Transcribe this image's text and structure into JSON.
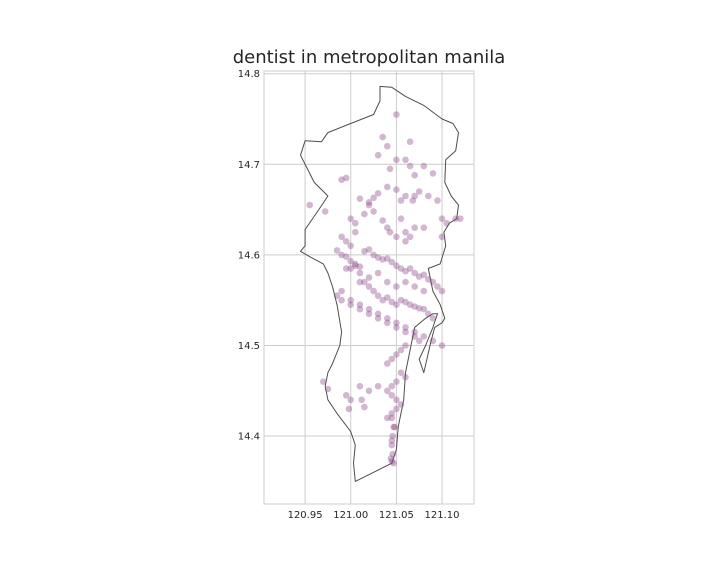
{
  "chart_data": {
    "type": "scatter",
    "title": "dentist in metropolitan manila",
    "xlabel": "",
    "ylabel": "",
    "xlim": [
      120.905,
      121.135
    ],
    "ylim": [
      14.325,
      14.803
    ],
    "xticks": [
      120.95,
      121.0,
      121.05,
      121.1
    ],
    "xtick_labels": [
      "120.95",
      "121.00",
      "121.05",
      "121.10"
    ],
    "yticks": [
      14.4,
      14.5,
      14.6,
      14.7,
      14.8
    ],
    "ytick_labels": [
      "14.4",
      "14.5",
      "14.6",
      "14.7",
      "14.8"
    ],
    "grid": true,
    "legend": "none",
    "marker_color": "#8e4a8c",
    "outline_color": "#4d4d4d",
    "outline": [
      [
        121.005,
        14.35
      ],
      [
        121.025,
        14.36
      ],
      [
        121.045,
        14.37
      ],
      [
        121.05,
        14.385
      ],
      [
        121.052,
        14.41
      ],
      [
        121.058,
        14.44
      ],
      [
        121.06,
        14.47
      ],
      [
        121.066,
        14.5
      ],
      [
        121.07,
        14.52
      ],
      [
        121.082,
        14.53
      ],
      [
        121.09,
        14.535
      ],
      [
        121.095,
        14.535
      ],
      [
        121.09,
        14.52
      ],
      [
        121.082,
        14.5
      ],
      [
        121.075,
        14.485
      ],
      [
        121.08,
        14.47
      ],
      [
        121.088,
        14.505
      ],
      [
        121.092,
        14.52
      ],
      [
        121.1,
        14.525
      ],
      [
        121.103,
        14.53
      ],
      [
        121.098,
        14.545
      ],
      [
        121.09,
        14.56
      ],
      [
        121.085,
        14.585
      ],
      [
        121.098,
        14.59
      ],
      [
        121.104,
        14.61
      ],
      [
        121.102,
        14.625
      ],
      [
        121.108,
        14.635
      ],
      [
        121.116,
        14.64
      ],
      [
        121.118,
        14.655
      ],
      [
        121.11,
        14.665
      ],
      [
        121.103,
        14.68
      ],
      [
        121.104,
        14.705
      ],
      [
        121.115,
        14.715
      ],
      [
        121.118,
        14.735
      ],
      [
        121.112,
        14.745
      ],
      [
        121.1,
        14.75
      ],
      [
        121.08,
        14.765
      ],
      [
        121.06,
        14.775
      ],
      [
        121.045,
        14.785
      ],
      [
        121.032,
        14.786
      ],
      [
        121.032,
        14.77
      ],
      [
        121.025,
        14.755
      ],
      [
        121.0,
        14.745
      ],
      [
        120.975,
        14.735
      ],
      [
        120.968,
        14.725
      ],
      [
        120.95,
        14.726
      ],
      [
        120.945,
        14.71
      ],
      [
        120.955,
        14.69
      ],
      [
        120.96,
        14.68
      ],
      [
        120.975,
        14.665
      ],
      [
        120.965,
        14.65
      ],
      [
        120.95,
        14.628
      ],
      [
        120.95,
        14.61
      ],
      [
        120.945,
        14.604
      ],
      [
        120.955,
        14.598
      ],
      [
        120.97,
        14.59
      ],
      [
        120.975,
        14.58
      ],
      [
        120.98,
        14.565
      ],
      [
        120.985,
        14.545
      ],
      [
        120.99,
        14.515
      ],
      [
        120.988,
        14.5
      ],
      [
        120.98,
        14.48
      ],
      [
        120.975,
        14.47
      ],
      [
        120.972,
        14.455
      ],
      [
        120.975,
        14.44
      ],
      [
        120.985,
        14.425
      ],
      [
        121.0,
        14.405
      ],
      [
        121.005,
        14.39
      ],
      [
        121.003,
        14.37
      ],
      [
        121.005,
        14.35
      ]
    ],
    "x": [
      121.05,
      121.035,
      121.065,
      121.04,
      121.03,
      121.06,
      121.05,
      121.065,
      121.043,
      121.07,
      121.08,
      121.09,
      121.075,
      121.06,
      121.055,
      120.995,
      120.99,
      121.04,
      121.05,
      121.03,
      121.025,
      121.02,
      121.07,
      121.068,
      121.085,
      121.095,
      121.1,
      121.105,
      121.115,
      121.12,
      121.1,
      121.08,
      121.07,
      121.06,
      121.065,
      121.06,
      121.05,
      121.04,
      121.043,
      121.055,
      120.955,
      120.972,
      121.0,
      121.005,
      121.015,
      121.025,
      121.035,
      121.02,
      121.01,
      121.005,
      120.99,
      120.995,
      121.0,
      120.985,
      120.99,
      120.995,
      121.0,
      121.005,
      121.01,
      121.015,
      121.02,
      121.025,
      121.03,
      121.035,
      121.04,
      121.045,
      121.05,
      121.055,
      121.06,
      121.065,
      121.07,
      121.075,
      121.08,
      121.085,
      121.09,
      121.095,
      121.1,
      121.02,
      121.03,
      121.04,
      121.05,
      121.06,
      121.07,
      121.08,
      121.01,
      120.995,
      121.0,
      121.005,
      121.01,
      121.015,
      121.02,
      121.025,
      121.03,
      121.035,
      121.04,
      121.045,
      121.05,
      121.055,
      121.06,
      121.065,
      121.07,
      121.075,
      121.08,
      121.085,
      121.09,
      121.0,
      121.01,
      121.02,
      121.03,
      121.04,
      121.05,
      121.06,
      121.07,
      121.08,
      121.09,
      121.1,
      120.99,
      120.985,
      120.99,
      121.0,
      121.01,
      121.02,
      121.03,
      121.04,
      121.05,
      121.06,
      121.07,
      121.075,
      121.06,
      121.055,
      121.05,
      121.045,
      121.04,
      121.055,
      121.06,
      121.05,
      121.045,
      121.04,
      121.045,
      121.05,
      121.055,
      121.05,
      121.045,
      121.04,
      120.97,
      120.975,
      120.995,
      121.0,
      120.998,
      121.01,
      121.02,
      121.015,
      121.012,
      121.03,
      121.045,
      121.047,
      121.045,
      121.045,
      121.046,
      121.044,
      121.045,
      121.047,
      121.046,
      121.048
    ],
    "y": [
      14.755,
      14.73,
      14.725,
      14.72,
      14.71,
      14.705,
      14.705,
      14.698,
      14.695,
      14.688,
      14.698,
      14.69,
      14.67,
      14.665,
      14.66,
      14.685,
      14.683,
      14.675,
      14.672,
      14.668,
      14.663,
      14.658,
      14.665,
      14.66,
      14.665,
      14.66,
      14.64,
      14.635,
      14.64,
      14.64,
      14.62,
      14.63,
      14.63,
      14.625,
      14.62,
      14.615,
      14.62,
      14.63,
      14.625,
      14.64,
      14.655,
      14.648,
      14.64,
      14.635,
      14.645,
      14.648,
      14.638,
      14.655,
      14.662,
      14.625,
      14.62,
      14.615,
      14.61,
      14.605,
      14.6,
      14.598,
      14.593,
      14.59,
      14.587,
      14.604,
      14.606,
      14.6,
      14.597,
      14.595,
      14.596,
      14.592,
      14.588,
      14.585,
      14.582,
      14.585,
      14.58,
      14.576,
      14.578,
      14.573,
      14.57,
      14.565,
      14.56,
      14.575,
      14.58,
      14.57,
      14.565,
      14.57,
      14.565,
      14.56,
      14.57,
      14.585,
      14.585,
      14.588,
      14.58,
      14.57,
      14.565,
      14.56,
      14.555,
      14.55,
      14.553,
      14.548,
      14.545,
      14.55,
      14.548,
      14.545,
      14.543,
      14.541,
      14.54,
      14.535,
      14.53,
      14.55,
      14.545,
      14.54,
      14.535,
      14.53,
      14.525,
      14.52,
      14.515,
      14.51,
      14.505,
      14.5,
      14.56,
      14.555,
      14.55,
      14.545,
      14.54,
      14.535,
      14.53,
      14.525,
      14.52,
      14.515,
      14.51,
      14.505,
      14.5,
      14.495,
      14.49,
      14.485,
      14.48,
      14.47,
      14.465,
      14.46,
      14.455,
      14.45,
      14.445,
      14.44,
      14.435,
      14.43,
      14.425,
      14.42,
      14.46,
      14.452,
      14.445,
      14.44,
      14.43,
      14.455,
      14.45,
      14.432,
      14.44,
      14.455,
      14.42,
      14.41,
      14.395,
      14.39,
      14.38,
      14.375,
      14.372,
      14.37,
      14.4,
      14.41
    ]
  }
}
